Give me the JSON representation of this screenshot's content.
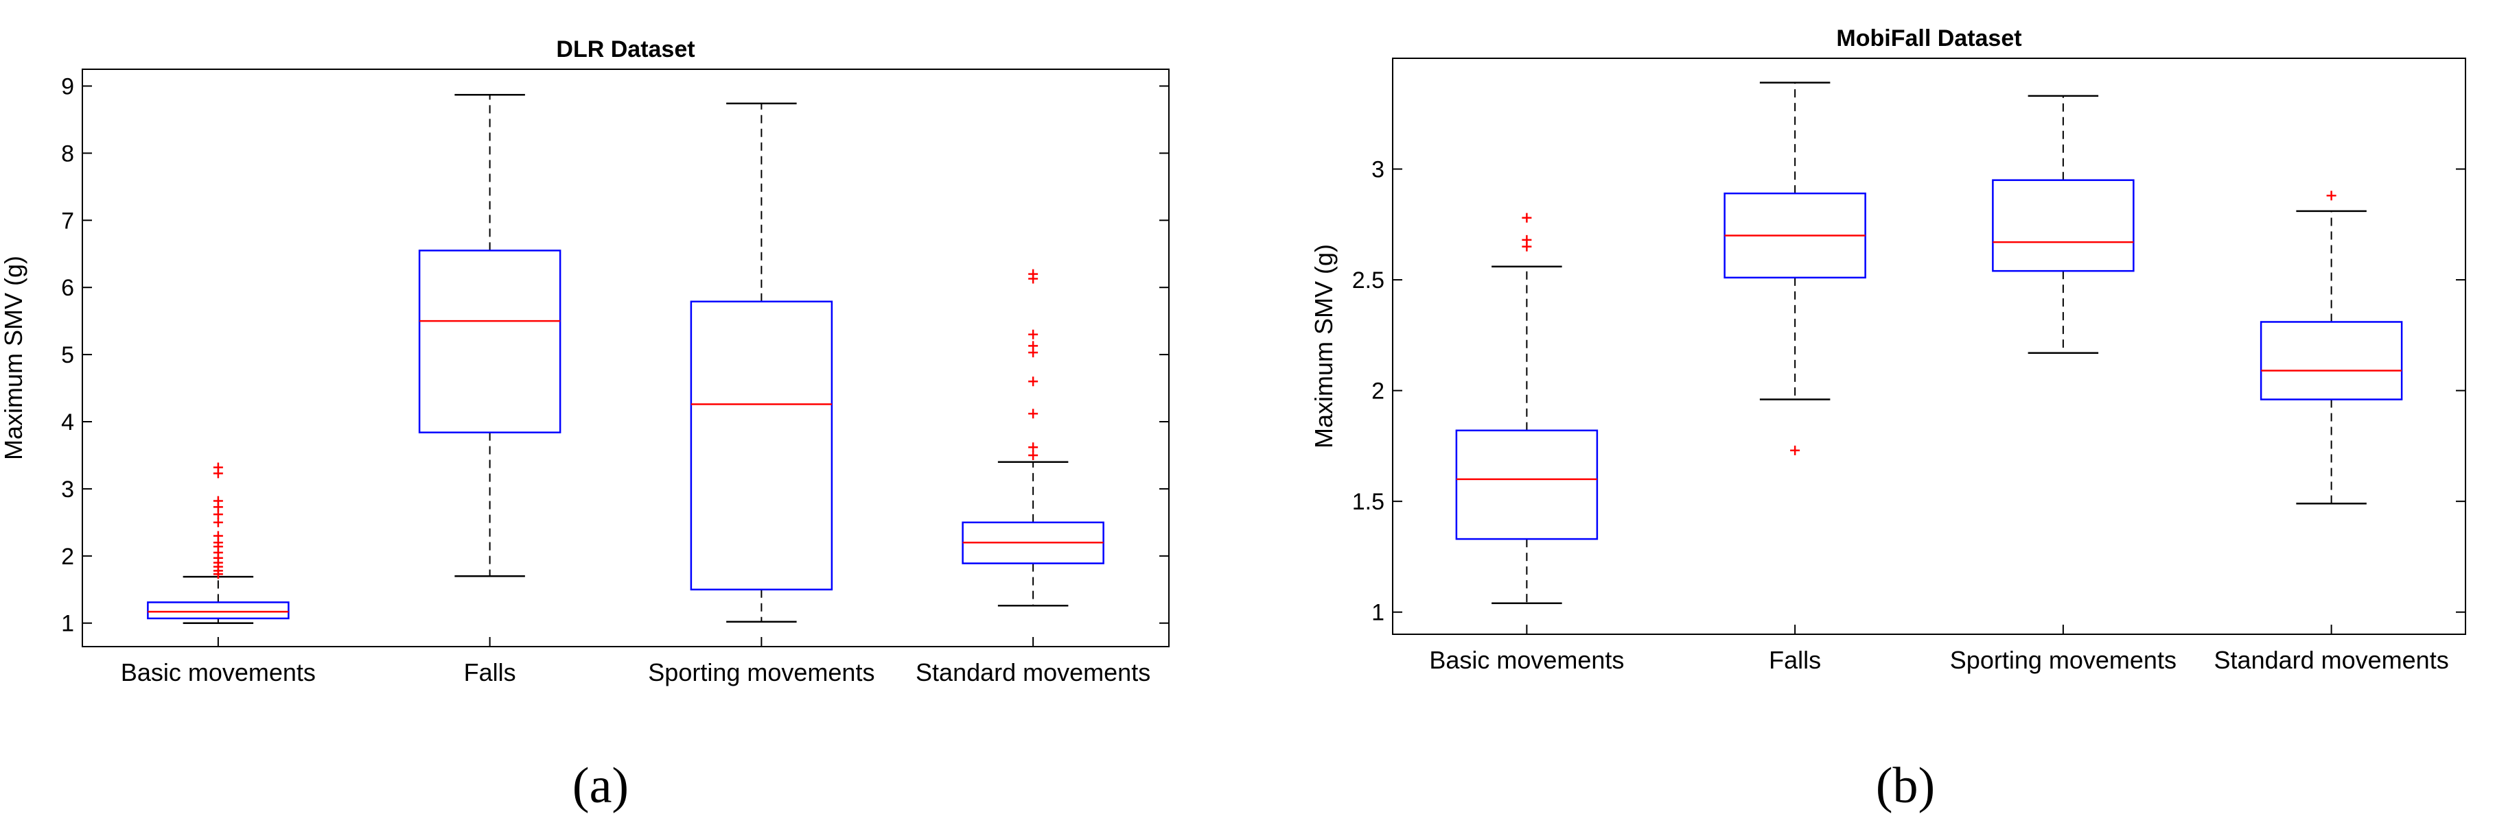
{
  "colors": {
    "box": "#0000ff",
    "median": "#ff0000",
    "whisker": "#000000",
    "outlier": "#ff0000",
    "axis": "#000000"
  },
  "panel_labels": [
    "(a)",
    "(b)"
  ],
  "chart_data": [
    {
      "type": "box",
      "title": "DLR Dataset",
      "xlabel": "",
      "ylabel": "Maximum SMV (g)",
      "ylim": [
        0.65,
        9.25
      ],
      "yticks": [
        "1",
        "2",
        "3",
        "4",
        "5",
        "6",
        "7",
        "8",
        "9"
      ],
      "ytick_values": [
        1,
        2,
        3,
        4,
        5,
        6,
        7,
        8,
        9
      ],
      "grid": false,
      "categories": [
        "Basic movements",
        "Falls",
        "Sporting movements",
        "Standard movements"
      ],
      "boxes": [
        {
          "whislo": 1.0,
          "q1": 1.07,
          "median": 1.17,
          "q3": 1.31,
          "whishi": 1.69,
          "fliers": [
            1.73,
            1.78,
            1.84,
            1.9,
            1.97,
            2.05,
            2.14,
            2.2,
            2.3,
            2.5,
            2.62,
            2.73,
            2.82,
            3.23,
            3.32
          ]
        },
        {
          "whislo": 1.7,
          "q1": 3.84,
          "median": 5.5,
          "q3": 6.55,
          "whishi": 8.87,
          "fliers": []
        },
        {
          "whislo": 1.02,
          "q1": 1.5,
          "median": 4.26,
          "q3": 5.79,
          "whishi": 8.74,
          "fliers": []
        },
        {
          "whislo": 1.26,
          "q1": 1.89,
          "median": 2.2,
          "q3": 2.5,
          "whishi": 3.4,
          "fliers": [
            3.5,
            3.62,
            4.12,
            4.6,
            5.03,
            5.13,
            5.3,
            6.13,
            6.2
          ]
        }
      ]
    },
    {
      "type": "box",
      "title": "MobiFall Dataset",
      "xlabel": "",
      "ylabel": "Maximum SMV (g)",
      "ylim": [
        0.9,
        3.5
      ],
      "yticks": [
        "1",
        "1.5",
        "2",
        "2.5",
        "3"
      ],
      "ytick_values": [
        1,
        1.5,
        2,
        2.5,
        3
      ],
      "grid": false,
      "categories": [
        "Basic movements",
        "Falls",
        "Sporting movements",
        "Standard movements"
      ],
      "boxes": [
        {
          "whislo": 1.04,
          "q1": 1.33,
          "median": 1.6,
          "q3": 1.82,
          "whishi": 2.56,
          "fliers": [
            2.65,
            2.68,
            2.78
          ]
        },
        {
          "whislo": 1.96,
          "q1": 2.51,
          "median": 2.7,
          "q3": 2.89,
          "whishi": 3.39,
          "fliers": [
            1.73
          ]
        },
        {
          "whislo": 2.17,
          "q1": 2.54,
          "median": 2.67,
          "q3": 2.95,
          "whishi": 3.33,
          "fliers": []
        },
        {
          "whislo": 1.49,
          "q1": 1.96,
          "median": 2.09,
          "q3": 2.31,
          "whishi": 2.81,
          "fliers": [
            2.88
          ]
        }
      ]
    }
  ]
}
